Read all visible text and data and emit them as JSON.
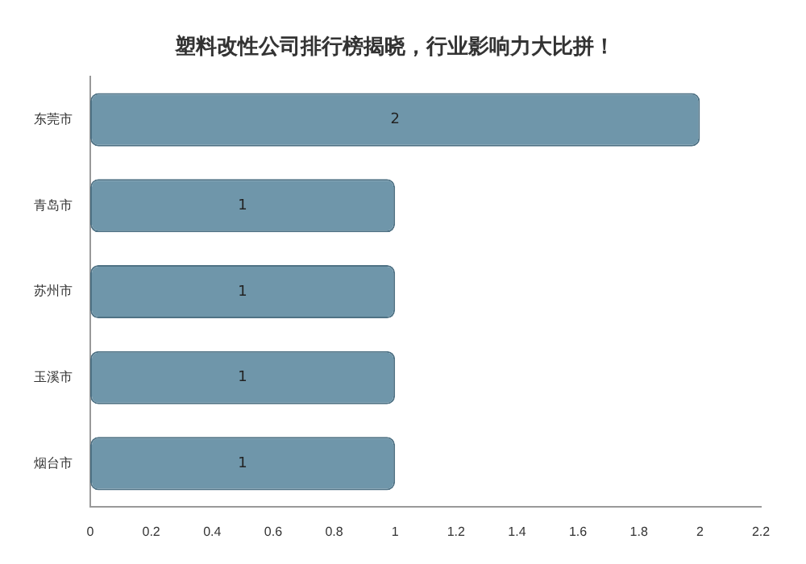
{
  "chart_data": {
    "type": "bar",
    "orientation": "horizontal",
    "title": "塑料改性公司排行榜揭晓，行业影响力大比拼！",
    "categories": [
      "东莞市",
      "青岛市",
      "苏州市",
      "玉溪市",
      "烟台市"
    ],
    "values": [
      2,
      1,
      1,
      1,
      1
    ],
    "color": "#6f96aa",
    "xlim": [
      0,
      2.2
    ],
    "xticks": [
      0,
      0.2,
      0.4,
      0.6,
      0.8,
      1,
      1.2,
      1.4,
      1.6,
      1.8,
      2,
      2.2
    ],
    "data_labels": true,
    "grid": false,
    "legend": false
  }
}
